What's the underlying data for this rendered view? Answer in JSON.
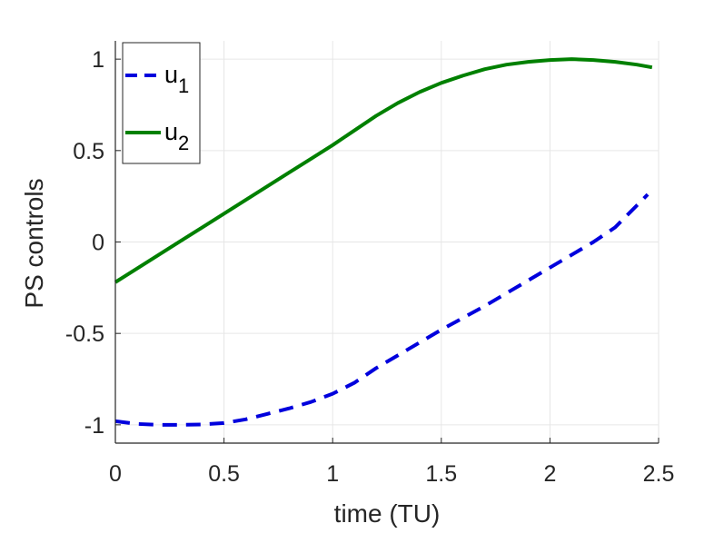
{
  "chart_data": {
    "type": "line",
    "title": "",
    "xlabel": "time (TU)",
    "ylabel": "PS controls",
    "xlim": [
      0,
      2.5
    ],
    "ylim": [
      -1.1,
      1.1
    ],
    "xticks": [
      0,
      0.5,
      1,
      1.5,
      2,
      2.5
    ],
    "xtick_labels": [
      "0",
      "0.5",
      "1",
      "1.5",
      "2",
      "2.5"
    ],
    "yticks": [
      -1,
      -0.5,
      0,
      0.5,
      1
    ],
    "ytick_labels": [
      "-1",
      "-0.5",
      "0",
      "0.5",
      "1"
    ],
    "grid": true,
    "legend_position": "top-left",
    "series": [
      {
        "name": "u",
        "name_subscript": "1",
        "color": "#0000dd",
        "style": "dashed",
        "x": [
          0,
          0.1,
          0.2,
          0.3,
          0.4,
          0.5,
          0.6,
          0.7,
          0.8,
          0.9,
          1.0,
          1.1,
          1.2,
          1.3,
          1.4,
          1.5,
          1.6,
          1.7,
          1.8,
          1.9,
          2.0,
          2.1,
          2.2,
          2.3,
          2.4,
          2.45
        ],
        "y": [
          -0.98,
          -0.995,
          -1.0,
          -1.0,
          -0.998,
          -0.99,
          -0.97,
          -0.94,
          -0.91,
          -0.875,
          -0.83,
          -0.77,
          -0.69,
          -0.62,
          -0.55,
          -0.48,
          -0.415,
          -0.35,
          -0.28,
          -0.21,
          -0.14,
          -0.07,
          0.0,
          0.08,
          0.2,
          0.26
        ]
      },
      {
        "name": "u",
        "name_subscript": "2",
        "color": "#008000",
        "style": "solid",
        "x": [
          0,
          0.1,
          0.2,
          0.3,
          0.4,
          0.5,
          0.6,
          0.7,
          0.8,
          0.9,
          1.0,
          1.1,
          1.2,
          1.3,
          1.4,
          1.5,
          1.6,
          1.7,
          1.8,
          1.9,
          2.0,
          2.1,
          2.2,
          2.3,
          2.4,
          2.47
        ],
        "y": [
          -0.22,
          -0.145,
          -0.07,
          0.005,
          0.08,
          0.155,
          0.23,
          0.305,
          0.38,
          0.455,
          0.53,
          0.61,
          0.69,
          0.76,
          0.82,
          0.87,
          0.91,
          0.945,
          0.97,
          0.985,
          0.995,
          1.0,
          0.995,
          0.985,
          0.97,
          0.955
        ]
      }
    ]
  }
}
